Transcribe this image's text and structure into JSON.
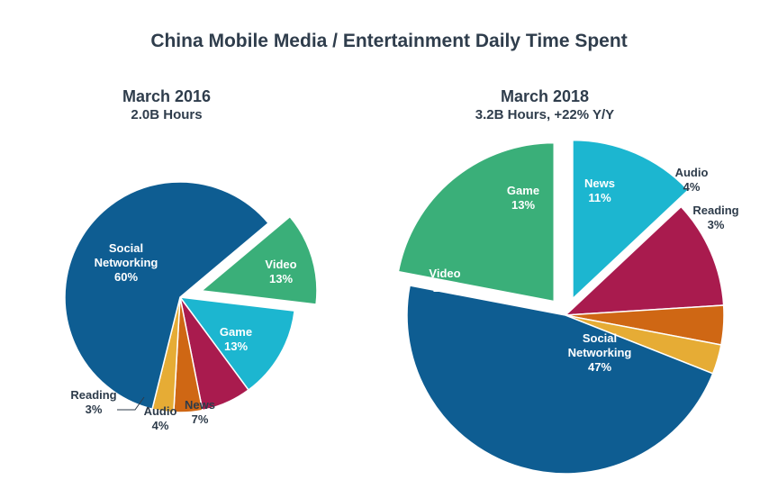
{
  "title": "China Mobile Media / Entertainment Daily Time Spent",
  "chart_data": [
    {
      "type": "pie",
      "title": "March 2016",
      "subtitle": "2.0B Hours",
      "slices": [
        {
          "name": "Video",
          "label": "Video",
          "value": 13,
          "pct": "13%",
          "color": "#3aaf79",
          "exploded": true
        },
        {
          "name": "Game",
          "label": "Game",
          "value": 13,
          "pct": "13%",
          "color": "#1cb6d0",
          "exploded": false
        },
        {
          "name": "News",
          "label": "News",
          "value": 7,
          "pct": "7%",
          "color": "#a91b4e",
          "exploded": false
        },
        {
          "name": "Audio",
          "label": "Audio",
          "value": 4,
          "pct": "4%",
          "color": "#cf6714",
          "exploded": false
        },
        {
          "name": "Reading",
          "label": "Reading",
          "value": 3,
          "pct": "3%",
          "color": "#e6ac35",
          "exploded": false
        },
        {
          "name": "Social Networking",
          "label": "Social\nNetworking",
          "value": 60,
          "pct": "60%",
          "color": "#0e5d92",
          "exploded": false
        }
      ]
    },
    {
      "type": "pie",
      "title": "March 2018",
      "subtitle": "3.2B Hours, +22% Y/Y",
      "slices": [
        {
          "name": "Game",
          "label": "Game",
          "value": 13,
          "pct": "13%",
          "color": "#1cb6d0",
          "exploded": true
        },
        {
          "name": "News",
          "label": "News",
          "value": 11,
          "pct": "11%",
          "color": "#a91b4e",
          "exploded": false
        },
        {
          "name": "Audio",
          "label": "Audio",
          "value": 4,
          "pct": "4%",
          "color": "#cf6714",
          "exploded": false
        },
        {
          "name": "Reading",
          "label": "Reading",
          "value": 3,
          "pct": "3%",
          "color": "#e6ac35",
          "exploded": false
        },
        {
          "name": "Social Networking",
          "label": "Social\nNetworking",
          "value": 47,
          "pct": "47%",
          "color": "#0e5d92",
          "exploded": false
        },
        {
          "name": "Video",
          "label": "Video",
          "value": 22,
          "pct": "22%",
          "color": "#3aaf79",
          "exploded": true
        }
      ]
    }
  ]
}
